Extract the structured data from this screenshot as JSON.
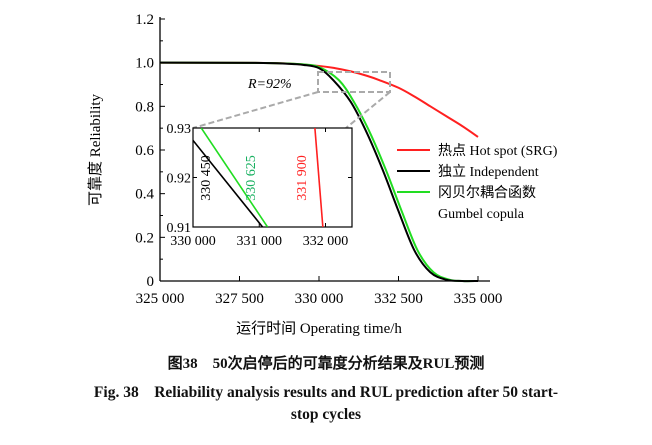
{
  "chart_data": {
    "type": "line",
    "xlabel": "运行时间 Operating time/h",
    "ylabel": "可靠度 Reliability",
    "xlim": [
      325000,
      335000
    ],
    "ylim": [
      0,
      1.2
    ],
    "xticks": [
      "325 000",
      "327 500",
      "330 000",
      "332 500",
      "335 000"
    ],
    "yticks": [
      "0",
      "0.2",
      "0.4",
      "0.6",
      "0.8",
      "1.0",
      "1.2"
    ],
    "grid": false,
    "legend_placement": "right",
    "annotation": "R=92%",
    "series": [
      {
        "name": "热点 Hot spot (SRG)",
        "color": "#ff2020",
        "x": [
          325000,
          328000,
          329000,
          330000,
          330500,
          331000,
          331500,
          331900,
          332500,
          333000,
          333500,
          334000,
          334500,
          335000
        ],
        "y": [
          1.0,
          0.999,
          0.996,
          0.985,
          0.975,
          0.96,
          0.94,
          0.92,
          0.885,
          0.845,
          0.8,
          0.755,
          0.71,
          0.66
        ]
      },
      {
        "name": "独立 Independent",
        "color": "#000000",
        "x": [
          325000,
          328000,
          329000,
          329500,
          330000,
          330450,
          331000,
          331500,
          332000,
          332500,
          333000,
          333500,
          334000,
          334500,
          335000
        ],
        "y": [
          1.0,
          0.999,
          0.995,
          0.99,
          0.975,
          0.92,
          0.82,
          0.68,
          0.51,
          0.32,
          0.14,
          0.04,
          0.006,
          0.0,
          0.0
        ]
      },
      {
        "name": "冈贝尔耦合函数 Gumbel copula",
        "color": "#22dd22",
        "x": [
          325000,
          328000,
          329000,
          329500,
          330000,
          330625,
          331100,
          331600,
          332100,
          332600,
          333100,
          333600,
          334100,
          334500,
          335000
        ],
        "y": [
          1.0,
          0.999,
          0.996,
          0.992,
          0.98,
          0.92,
          0.82,
          0.68,
          0.51,
          0.32,
          0.14,
          0.04,
          0.006,
          0.0,
          0.0
        ]
      }
    ],
    "inset": {
      "xlim": [
        330000,
        332400
      ],
      "ylim": [
        0.91,
        0.93
      ],
      "xticks": [
        "330 000",
        "331 000",
        "332 000"
      ],
      "yticks": [
        "0.91",
        "0.92",
        "0.93"
      ],
      "labels": [
        {
          "text": "330 450",
          "color": "#000000"
        },
        {
          "text": "330 625",
          "color": "#18b060"
        },
        {
          "text": "331 900",
          "color": "#ff2020"
        }
      ]
    }
  },
  "caption": {
    "cn": "图38　50次启停后的可靠度分析结果及RUL预测",
    "en_line1": "Fig. 38　Reliability analysis results and RUL prediction after 50 start-",
    "en_line2": "stop cycles"
  }
}
